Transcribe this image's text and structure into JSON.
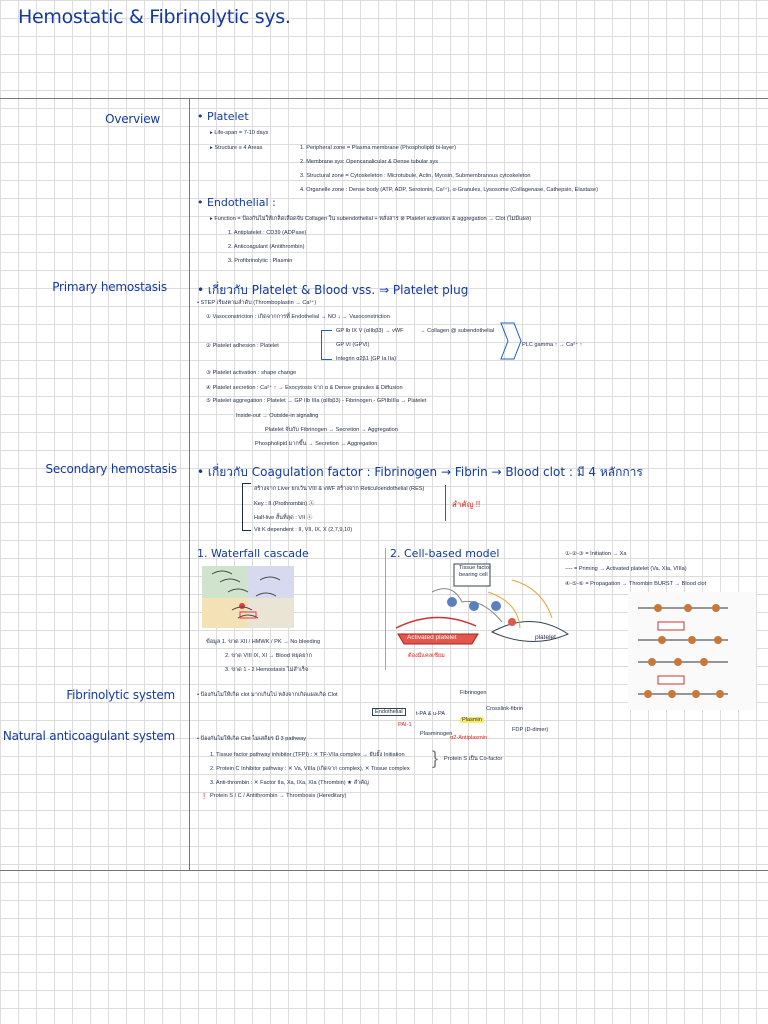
{
  "title": "Hemostatic & Fibrinolytic sys.",
  "sections": {
    "overview": "Overview",
    "primary": "Primary hemostasis",
    "secondary": "Secondary hemostasis",
    "fibrinolytic": "Fibrinolytic system",
    "natural": "Natural anticoagulant system"
  },
  "overview": {
    "platelet_head": "• Platelet",
    "lifespan": "▸ Life-span = 7-10 days",
    "structure_label": "▸ Structure ≡ 4 Areas",
    "areas": [
      "1. Peripheral zone = Plasma membrane (Phospholipid bi-layer)",
      "2. Membrane sys: Opencanalicular & Dense tubular sys",
      "3. Structural zone = Cytoskeleton : Microtubule, Actin, Myosin, Submembranous cytoskeleton",
      "4. Organelle zone : Dense body (ATP, ADP, Serotonin, Ca²⁺), α-Granules, Lysosome (Collagenase, Cathepsin, Elastase)"
    ],
    "endothelial_head": "• Endothelial :",
    "function": "▸ Function = ป้องกันไม่ให้เกล็ดเลือดจับ Collagen ใน subendothelial + หลั่งสาร ⊗ Platelet activation & aggregation → Clot (ไม่มีแผล)",
    "endo_items": [
      "1. Antiplatelet : CD39 (ADPase)",
      "2. Anticoagulant (Antithrombin)",
      "3. Profibrinolytic : Plasmin"
    ]
  },
  "primary": {
    "line1": "• เกี่ยวกับ Platelet & Blood vss. ⇒ Platelet plug",
    "line2": "• STEP เรียงตามลำดับ (Thromboplastin → Ca²⁺)",
    "steps": [
      "① Vasoconstriction : เกิดจากการที่ Endothelial → NO ↓ → Vasoconstriction",
      "② Platelet adhesion : Platelet",
      "③ Platelet activation : shape change",
      "④ Platelet secretion : Ca²⁺ ↑ → Exocytosis จาก α & Dense granules & Diffusion",
      "⑤ Platelet aggregation : Platelet → GP IIb IIIa (αIIbβ3) - Fibrinogen - GPIIbIIIa → Platelet"
    ],
    "adhesion_branches": [
      "GP Ib IX V (αIIbβ3) → vWF",
      "GP VI (GPVI)",
      "Integrin α2β1 (GP Ia IIa)"
    ],
    "adhesion_right": "→ Collagen @ subendothelial",
    "plc": "PLC gamma ↑ → Ca²⁺ ↑",
    "inside_out": "Inside-out → Outside-in signaling",
    "platelet_fibrinogen": "Platelet จับกับ Fibrinogen → Secretion → Aggregation",
    "phospholipid": "Phospholipid มากขึ้น → Secretion → Aggregation"
  },
  "secondary": {
    "line1": "• เกี่ยวกับ Coagulation factor : Fibrinogen → Fibrin → Blood clot : มี 4 หลักการ",
    "items": [
      "สร้างจาก Liver ยกเว้น VIII & vWF สร้างจาก Reticuloendothelial (RES)",
      "Key : II (Prothrombin) ⓢ",
      "Half-live สั้นที่สุด : VII ⓢ",
      "Vit K dependent : II, VII, IX, X (2,7,9,10)"
    ],
    "red_note": "สำคัญ !!",
    "waterfall": "1. Waterfall cascade",
    "cellbased": "2. Cell-based model",
    "waterfall_notes": [
      "ข้อมูล 1. ขาด XII / HMWK / PK → No bleeding",
      "2. ขาด VIII IX, XI → Blood หยุดยาก",
      "3. ขาด 1 - 2 Hemostasis ไม่สำเร็จ"
    ],
    "cb_labels": {
      "tissue_factor": "Tissue factor bearing cell",
      "activated_platelet": "Activated platelet",
      "platelet": "platelet",
      "red_note": "ต้องมีแคลเซียม"
    },
    "legend": [
      "①-②-③ = Initiation → Xa",
      "---- = Priming → Activated platelet (Va, XIa, VIIIa)",
      "④-⑤-⑥ = Propagation → Thrombin BURST → Blood clot"
    ]
  },
  "fibrinolytic": {
    "line": "• ป้องกันไม่ให้เกิด clot มากเกินไป หลังจากเกิดแผลเกิด Clot",
    "labels": [
      "Endothelial",
      "t-PA & u-PA",
      "Fibrinogen",
      "Crosslink-fibrin",
      "Plasmin",
      "FDP (D-dimer)",
      "PAI-1",
      "Plasminogen",
      "α2-Antiplasmin"
    ]
  },
  "natural": {
    "line": "• ป้องกันไม่ให้เกิด Clot ไม่เสถียร มี 3 pathway",
    "items": [
      "1. Tissue factor pathway inhibitor (TFPI) : ✕ TF-VIIa complex → ยับยั้ง Initiation",
      "2. Protein C Inhibitor pathway : ✕ Va, VIIIa (เกิดจาก complex), ✕ Tissue complex",
      "3. Anti-thrombin : ✕ Factor IIa, Xa, IXa, XIa (Thrombin) ★ สำคัญ",
      "Protein S / C / Antithrombin → Thrombosis (Hereditary)"
    ],
    "cofactor": "Protein S เป็น Co-factor"
  }
}
